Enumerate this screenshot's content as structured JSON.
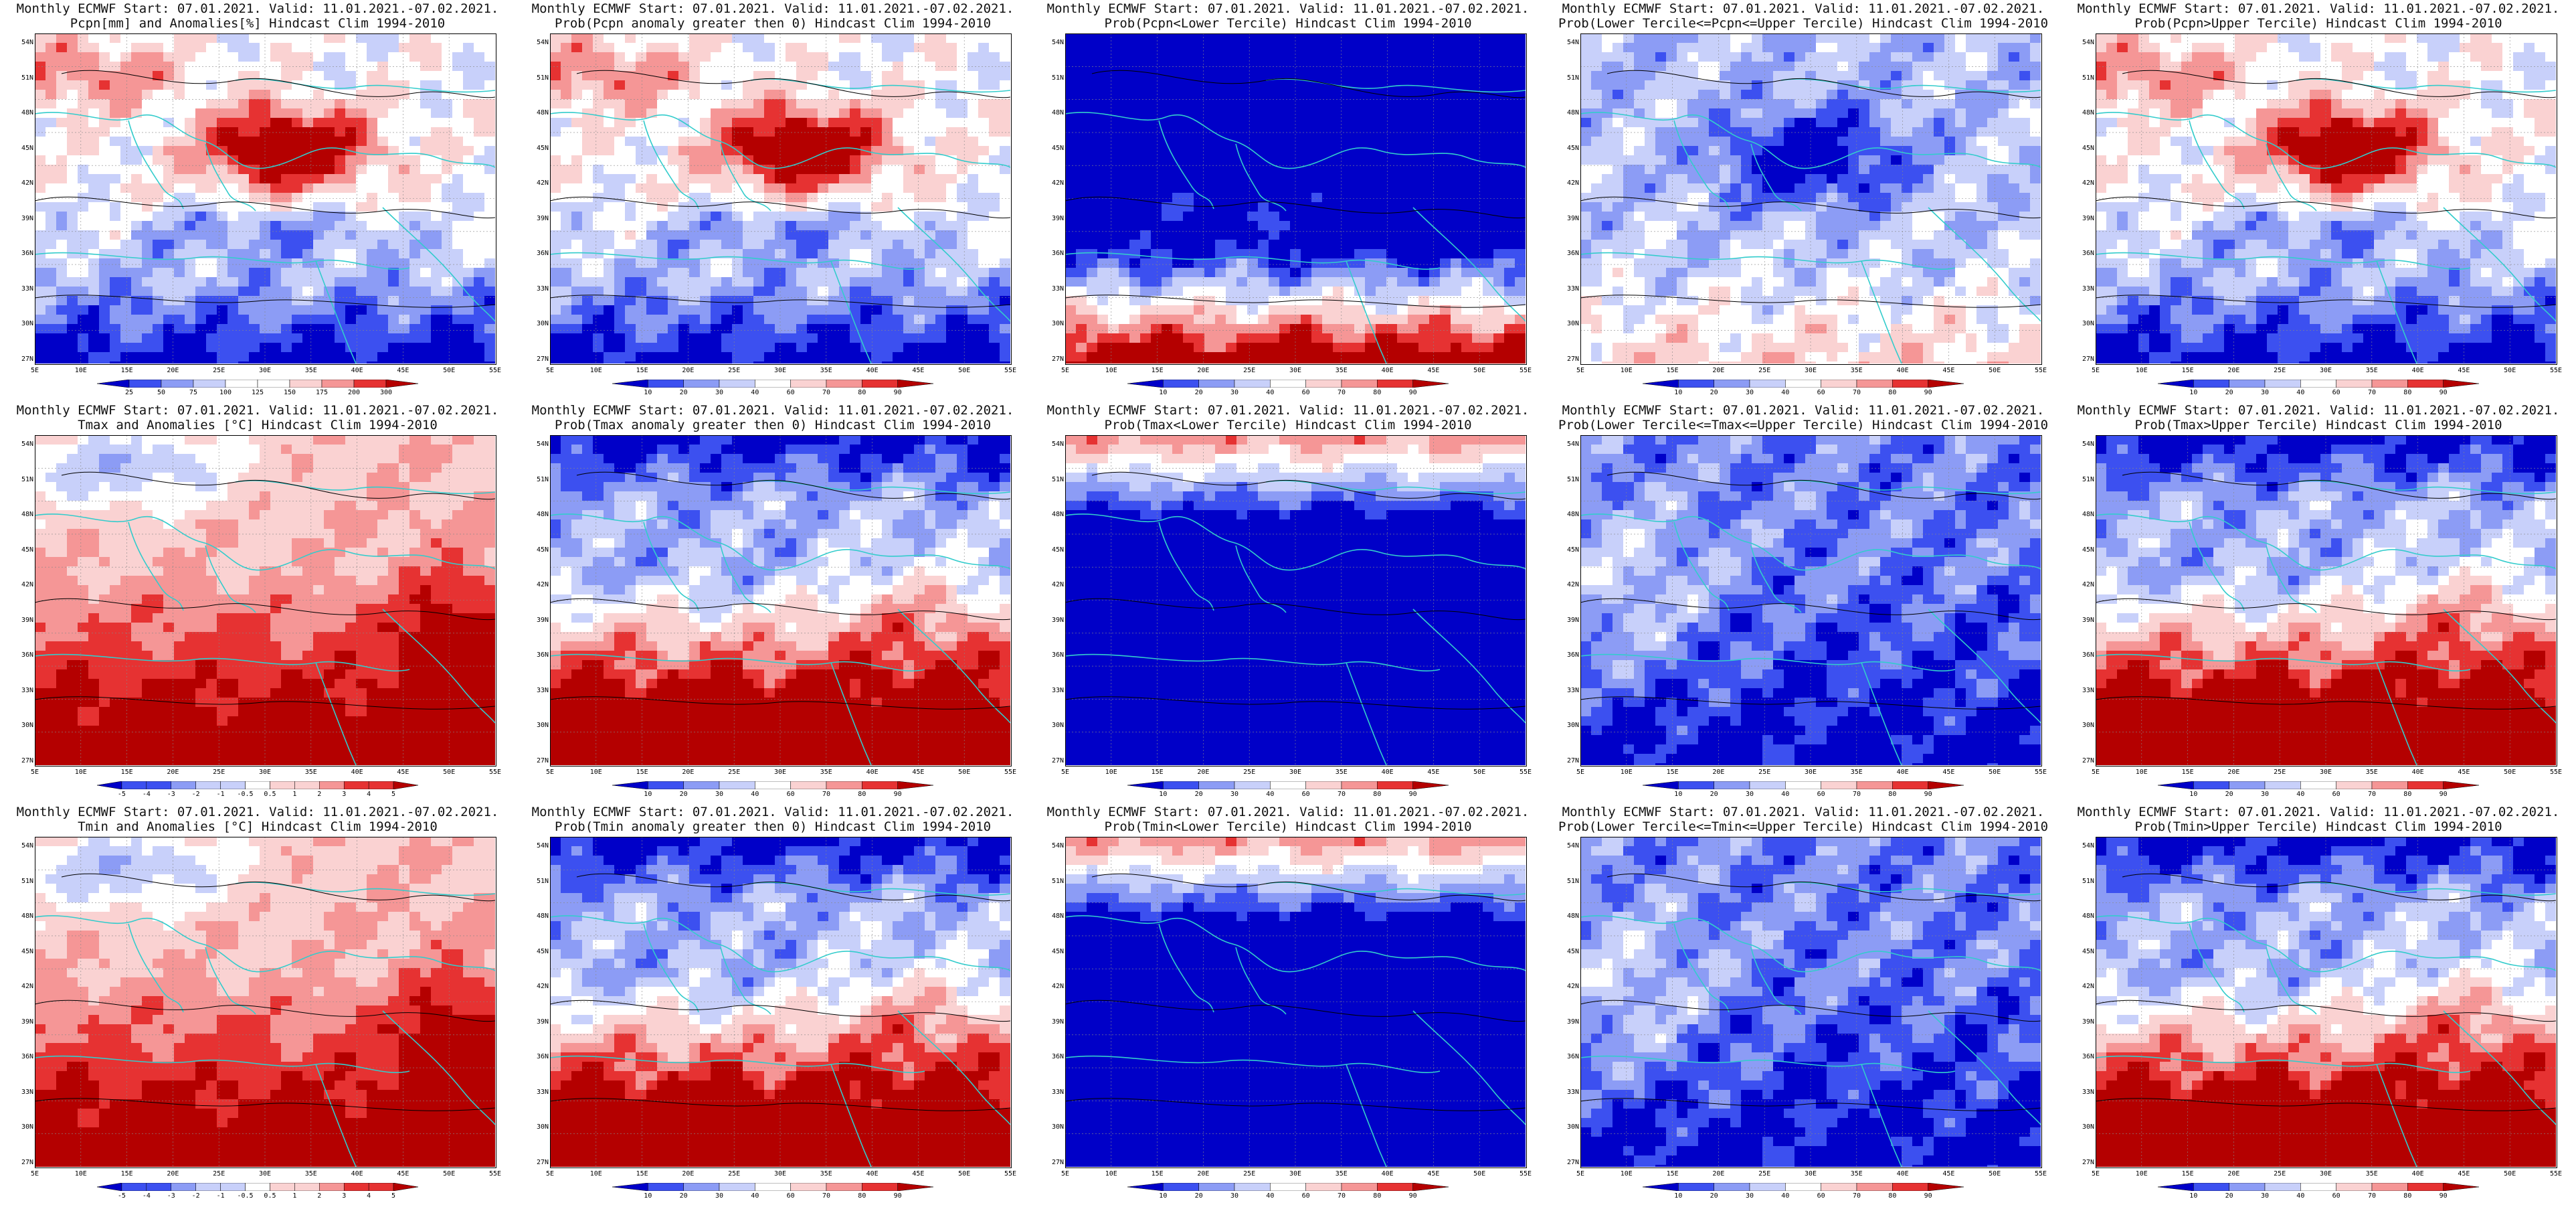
{
  "latitude_labels": [
    "54N",
    "51N",
    "48N",
    "45N",
    "42N",
    "39N",
    "36N",
    "33N",
    "30N",
    "27N"
  ],
  "longitude_labels": [
    "5E",
    "10E",
    "15E",
    "20E",
    "25E",
    "30E",
    "35E",
    "40E",
    "45E",
    "50E",
    "55E"
  ],
  "colors": {
    "blue_strong": "#0000c8",
    "blue_mid": "#3c50f0",
    "blue_light": "#8c9cf5",
    "blue_pale": "#c8d0fa",
    "white": "#ffffff",
    "red_pale": "#fad2d2",
    "red_light": "#f59696",
    "red_mid": "#e63232",
    "red_strong": "#b40000",
    "coast": "#33cccc",
    "contour": "#000000"
  },
  "rows": [
    {
      "name": "precipitation",
      "panels": [
        {
          "title_line1": "Monthly ECMWF Start: 07.01.2021. Valid: 11.01.2021.-07.02.2021.",
          "title_line2": "Pcpn[mm] and Anomalies[%] Hindcast Clim 1994-2010",
          "colorbar_ticks": [
            "25",
            "50",
            "75",
            "100",
            "125",
            "150",
            "175",
            "200",
            "300"
          ],
          "palette": "diverging",
          "pattern": "precip_anom"
        },
        {
          "title_line1": "Monthly ECMWF Start: 07.01.2021. Valid: 11.01.2021.-07.02.2021.",
          "title_line2": "Prob(Pcpn anomaly greater then 0) Hindcast Clim 1994-2010",
          "colorbar_ticks": [
            "10",
            "20",
            "30",
            "40",
            "60",
            "70",
            "80",
            "90"
          ],
          "palette": "diverging",
          "pattern": "precip_anom"
        },
        {
          "title_line1": "Monthly ECMWF Start: 07.01.2021. Valid: 11.01.2021.-07.02.2021.",
          "title_line2": "Prob(Pcpn<Lower Tercile) Hindcast Clim 1994-2010",
          "colorbar_ticks": [
            "10",
            "20",
            "30",
            "40",
            "60",
            "70",
            "80",
            "90"
          ],
          "palette": "diverging",
          "pattern": "precip_lower"
        },
        {
          "title_line1": "Monthly ECMWF Start: 07.01.2021. Valid: 11.01.2021.-07.02.2021.",
          "title_line2": "Prob(Lower Tercile<=Pcpn<=Upper Tercile) Hindcast Clim 1994-2010",
          "colorbar_ticks": [
            "10",
            "20",
            "30",
            "40",
            "60",
            "70",
            "80",
            "90"
          ],
          "palette": "diverging",
          "pattern": "precip_middle"
        },
        {
          "title_line1": "Monthly ECMWF Start: 07.01.2021. Valid: 11.01.2021.-07.02.2021.",
          "title_line2": "Prob(Pcpn>Upper Tercile) Hindcast Clim 1994-2010",
          "colorbar_ticks": [
            "10",
            "20",
            "30",
            "40",
            "60",
            "70",
            "80",
            "90"
          ],
          "palette": "diverging",
          "pattern": "precip_anom"
        }
      ]
    },
    {
      "name": "tmax",
      "panels": [
        {
          "title_line1": "Monthly ECMWF Start: 07.01.2021. Valid: 11.01.2021.-07.02.2021.",
          "title_line2": "Tmax and Anomalies [°C] Hindcast Clim 1994-2010",
          "colorbar_ticks": [
            "-5",
            "-4",
            "-3",
            "-2",
            "-1",
            "-0.5",
            "0.5",
            "1",
            "2",
            "3",
            "4",
            "5"
          ],
          "palette": "diverging",
          "pattern": "temp_anom"
        },
        {
          "title_line1": "Monthly ECMWF Start: 07.01.2021. Valid: 11.01.2021.-07.02.2021.",
          "title_line2": "Prob(Tmax anomaly greater then 0) Hindcast Clim 1994-2010",
          "colorbar_ticks": [
            "10",
            "20",
            "30",
            "40",
            "60",
            "70",
            "80",
            "90"
          ],
          "palette": "diverging",
          "pattern": "temp_upper"
        },
        {
          "title_line1": "Monthly ECMWF Start: 07.01.2021. Valid: 11.01.2021.-07.02.2021.",
          "title_line2": "Prob(Tmax<Lower Tercile) Hindcast Clim 1994-2010",
          "colorbar_ticks": [
            "10",
            "20",
            "30",
            "40",
            "60",
            "70",
            "80",
            "90"
          ],
          "palette": "diverging",
          "pattern": "temp_lower"
        },
        {
          "title_line1": "Monthly ECMWF Start: 07.01.2021. Valid: 11.01.2021.-07.02.2021.",
          "title_line2": "Prob(Lower Tercile<=Tmax<=Upper Tercile) Hindcast Clim 1994-2010",
          "colorbar_ticks": [
            "10",
            "20",
            "30",
            "40",
            "60",
            "70",
            "80",
            "90"
          ],
          "palette": "diverging",
          "pattern": "temp_middle"
        },
        {
          "title_line1": "Monthly ECMWF Start: 07.01.2021. Valid: 11.01.2021.-07.02.2021.",
          "title_line2": "Prob(Tmax>Upper Tercile) Hindcast Clim 1994-2010",
          "colorbar_ticks": [
            "10",
            "20",
            "30",
            "40",
            "60",
            "70",
            "80",
            "90"
          ],
          "palette": "diverging",
          "pattern": "temp_upper"
        }
      ]
    },
    {
      "name": "tmin",
      "panels": [
        {
          "title_line1": "Monthly ECMWF Start: 07.01.2021. Valid: 11.01.2021.-07.02.2021.",
          "title_line2": "Tmin and Anomalies [°C] Hindcast Clim 1994-2010",
          "colorbar_ticks": [
            "-5",
            "-4",
            "-3",
            "-2",
            "-1",
            "-0.5",
            "0.5",
            "1",
            "2",
            "3",
            "4",
            "5"
          ],
          "palette": "diverging",
          "pattern": "temp_anom"
        },
        {
          "title_line1": "Monthly ECMWF Start: 07.01.2021. Valid: 11.01.2021.-07.02.2021.",
          "title_line2": "Prob(Tmin anomaly greater then 0) Hindcast Clim 1994-2010",
          "colorbar_ticks": [
            "10",
            "20",
            "30",
            "40",
            "60",
            "70",
            "80",
            "90"
          ],
          "palette": "diverging",
          "pattern": "temp_upper"
        },
        {
          "title_line1": "Monthly ECMWF Start: 07.01.2021. Valid: 11.01.2021.-07.02.2021.",
          "title_line2": "Prob(Tmin<Lower Tercile) Hindcast Clim 1994-2010",
          "colorbar_ticks": [
            "10",
            "20",
            "30",
            "40",
            "60",
            "70",
            "80",
            "90"
          ],
          "palette": "diverging",
          "pattern": "temp_lower"
        },
        {
          "title_line1": "Monthly ECMWF Start: 07.01.2021. Valid: 11.01.2021.-07.02.2021.",
          "title_line2": "Prob(Lower Tercile<=Tmin<=Upper Tercile) Hindcast Clim 1994-2010",
          "colorbar_ticks": [
            "10",
            "20",
            "30",
            "40",
            "60",
            "70",
            "80",
            "90"
          ],
          "palette": "diverging",
          "pattern": "temp_middle"
        },
        {
          "title_line1": "Monthly ECMWF Start: 07.01.2021. Valid: 11.01.2021.-07.02.2021.",
          "title_line2": "Prob(Tmin>Upper Tercile) Hindcast Clim 1994-2010",
          "colorbar_ticks": [
            "10",
            "20",
            "30",
            "40",
            "60",
            "70",
            "80",
            "90"
          ],
          "palette": "diverging",
          "pattern": "temp_upper"
        }
      ]
    }
  ]
}
